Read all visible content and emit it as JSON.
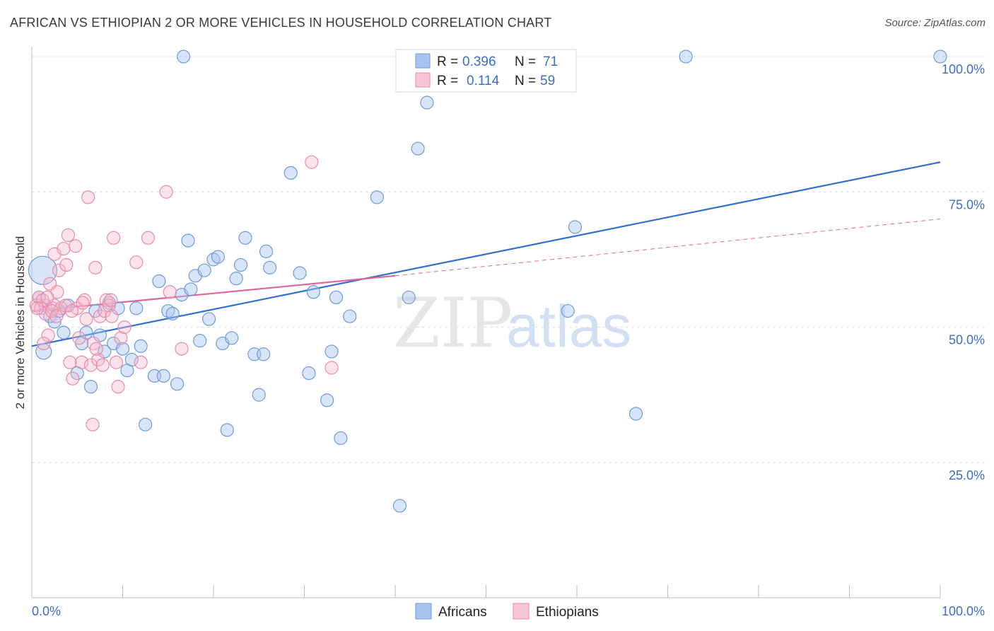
{
  "title": "AFRICAN VS ETHIOPIAN 2 OR MORE VEHICLES IN HOUSEHOLD CORRELATION CHART",
  "source": "Source: ZipAtlas.com",
  "watermark": {
    "zip": "ZIP",
    "atlas": "atlas"
  },
  "legend": {
    "rows": [
      {
        "r_label": "R =",
        "r_value": "0.396",
        "n_label": "N =",
        "n_value": "71",
        "color": "#a8c4ee"
      },
      {
        "r_label": "R =",
        "r_value": "0.114",
        "n_label": "N =",
        "n_value": "59",
        "color": "#f6b8cc"
      }
    ]
  },
  "bottom_legend": [
    {
      "label": "Africans",
      "color": "#a8c4ee"
    },
    {
      "label": "Ethiopians",
      "color": "#f6b8cc"
    }
  ],
  "chart_data": {
    "type": "scatter",
    "title": "AFRICAN VS ETHIOPIAN 2 OR MORE VEHICLES IN HOUSEHOLD CORRELATION CHART",
    "xlabel": "",
    "ylabel": "2 or more Vehicles in Household",
    "xlim": [
      0,
      100
    ],
    "ylim": [
      0,
      103
    ],
    "x_tick_labels": [
      "0.0%",
      "100.0%"
    ],
    "y_ticks": [
      25,
      50,
      75,
      100
    ],
    "y_tick_labels": [
      "25.0%",
      "50.0%",
      "75.0%",
      "100.0%"
    ],
    "grid": true,
    "colors": {
      "africans": "#5b8fd6",
      "africans_fill": "#a8c4ee",
      "ethiopians": "#e8739c",
      "ethiopians_fill": "#f6b8cc",
      "africans_line": "#2f6fd0",
      "ethiopians_line": "#e0669a",
      "axis_text": "#3b6fc4"
    },
    "series": [
      {
        "name": "Africans",
        "r": 0.396,
        "n": 71,
        "trend": {
          "x": [
            0,
            100
          ],
          "y": [
            46.5,
            80.5
          ]
        },
        "points": [
          [
            1.2,
            60.5
          ],
          [
            1.3,
            45.5
          ],
          [
            0.8,
            55.5
          ],
          [
            2.0,
            52.0
          ],
          [
            2.5,
            51.0
          ],
          [
            4.0,
            54.0
          ],
          [
            3.5,
            49.0
          ],
          [
            5.5,
            47.0
          ],
          [
            6.0,
            49.0
          ],
          [
            7.5,
            48.5
          ],
          [
            7.0,
            53.0
          ],
          [
            8.5,
            54.5
          ],
          [
            8.0,
            45.5
          ],
          [
            9.0,
            47.0
          ],
          [
            10.0,
            46.0
          ],
          [
            11.5,
            53.5
          ],
          [
            12.0,
            46.5
          ],
          [
            10.5,
            42.0
          ],
          [
            11.0,
            44.0
          ],
          [
            12.5,
            32.0
          ],
          [
            13.5,
            41.0
          ],
          [
            14.0,
            58.5
          ],
          [
            15.0,
            53.0
          ],
          [
            15.5,
            52.5
          ],
          [
            16.0,
            39.5
          ],
          [
            16.5,
            56.0
          ],
          [
            16.7,
            100.0
          ],
          [
            17.2,
            66.0
          ],
          [
            17.5,
            57.0
          ],
          [
            18.0,
            59.5
          ],
          [
            18.5,
            47.5
          ],
          [
            19.0,
            60.5
          ],
          [
            19.5,
            51.5
          ],
          [
            20.0,
            62.5
          ],
          [
            20.5,
            63.0
          ],
          [
            21.0,
            47.0
          ],
          [
            21.5,
            31.0
          ],
          [
            22.0,
            48.0
          ],
          [
            22.5,
            59.0
          ],
          [
            23.0,
            61.5
          ],
          [
            23.5,
            66.5
          ],
          [
            24.5,
            45.0
          ],
          [
            25.0,
            37.5
          ],
          [
            25.5,
            45.0
          ],
          [
            25.8,
            64.0
          ],
          [
            26.2,
            61.0
          ],
          [
            28.5,
            78.5
          ],
          [
            29.5,
            60.0
          ],
          [
            30.5,
            41.5
          ],
          [
            31.0,
            56.5
          ],
          [
            32.5,
            36.5
          ],
          [
            33.0,
            45.5
          ],
          [
            33.5,
            55.5
          ],
          [
            34.0,
            29.5
          ],
          [
            35.0,
            52.0
          ],
          [
            38.0,
            74.0
          ],
          [
            40.5,
            17.0
          ],
          [
            41.5,
            55.5
          ],
          [
            42.5,
            83.0
          ],
          [
            43.5,
            91.5
          ],
          [
            59.0,
            53.0
          ],
          [
            59.8,
            68.5
          ],
          [
            66.5,
            34.0
          ],
          [
            72.0,
            100.0
          ],
          [
            100.0,
            100.0
          ],
          [
            1.5,
            54.0
          ],
          [
            3.0,
            53.0
          ],
          [
            5.0,
            41.5
          ],
          [
            6.5,
            39.0
          ],
          [
            9.5,
            53.5
          ],
          [
            14.5,
            41.0
          ]
        ],
        "sizes_note": "marker radius ~9, first point larger"
      },
      {
        "name": "Ethiopians",
        "r": 0.114,
        "n": 59,
        "trend": {
          "x": [
            0,
            40
          ],
          "y": [
            53.0,
            59.5
          ]
        },
        "trend_extended": {
          "x": [
            40,
            100
          ],
          "y": [
            59.5,
            70.0
          ]
        },
        "points": [
          [
            0.5,
            54.0
          ],
          [
            0.8,
            55.5
          ],
          [
            1.0,
            53.5
          ],
          [
            1.2,
            55.0
          ],
          [
            1.5,
            52.5
          ],
          [
            1.8,
            48.5
          ],
          [
            1.3,
            47.0
          ],
          [
            2.0,
            58.0
          ],
          [
            2.3,
            53.5
          ],
          [
            2.5,
            54.0
          ],
          [
            2.5,
            63.5
          ],
          [
            2.8,
            56.5
          ],
          [
            3.0,
            60.5
          ],
          [
            3.2,
            53.5
          ],
          [
            3.5,
            64.5
          ],
          [
            3.8,
            61.5
          ],
          [
            4.0,
            67.0
          ],
          [
            4.2,
            43.5
          ],
          [
            4.5,
            40.5
          ],
          [
            4.8,
            65.0
          ],
          [
            5.0,
            53.5
          ],
          [
            5.2,
            48.0
          ],
          [
            5.5,
            43.5
          ],
          [
            5.8,
            55.0
          ],
          [
            6.0,
            51.5
          ],
          [
            6.2,
            74.0
          ],
          [
            6.5,
            43.0
          ],
          [
            6.7,
            32.0
          ],
          [
            6.8,
            47.0
          ],
          [
            7.0,
            61.0
          ],
          [
            7.3,
            44.0
          ],
          [
            7.5,
            52.0
          ],
          [
            7.8,
            43.0
          ],
          [
            8.0,
            53.0
          ],
          [
            8.2,
            55.0
          ],
          [
            8.5,
            54.0
          ],
          [
            8.8,
            52.0
          ],
          [
            9.0,
            66.5
          ],
          [
            9.3,
            43.5
          ],
          [
            9.5,
            39.0
          ],
          [
            9.8,
            48.0
          ],
          [
            11.5,
            62.0
          ],
          [
            12.0,
            43.5
          ],
          [
            12.8,
            66.5
          ],
          [
            14.8,
            75.0
          ],
          [
            15.2,
            56.5
          ],
          [
            16.5,
            46.0
          ],
          [
            30.8,
            80.5
          ],
          [
            33.0,
            42.5
          ],
          [
            2.2,
            53.0
          ],
          [
            3.7,
            54.0
          ],
          [
            1.7,
            55.5
          ],
          [
            2.7,
            52.0
          ],
          [
            0.6,
            53.5
          ],
          [
            4.4,
            53.0
          ],
          [
            5.6,
            54.5
          ],
          [
            7.1,
            46.0
          ],
          [
            8.7,
            55.0
          ],
          [
            10.2,
            50.0
          ]
        ]
      }
    ]
  }
}
